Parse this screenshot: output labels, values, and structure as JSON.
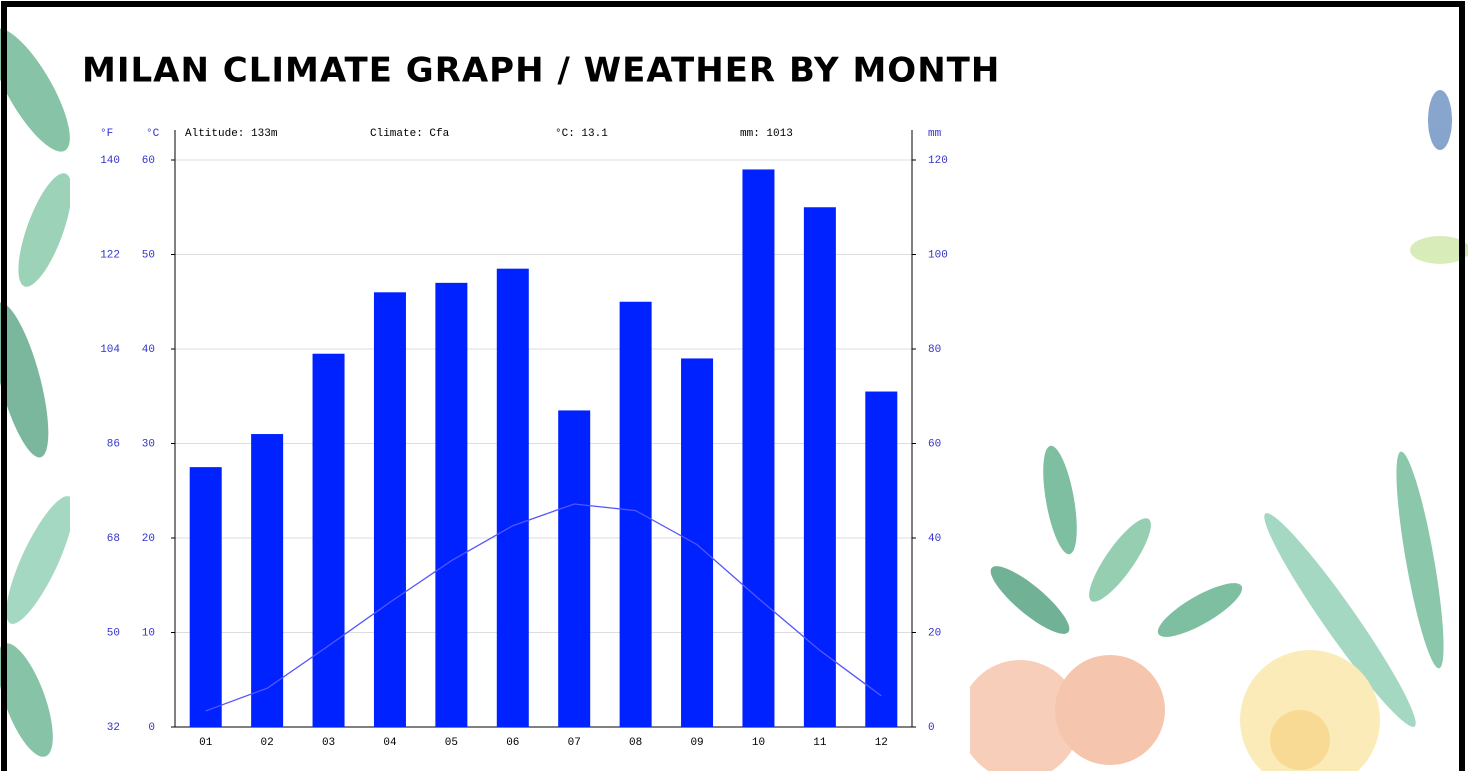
{
  "chart_data": {
    "type": "bar_line",
    "title": "MILAN CLIMATE GRAPH / WEATHER BY MONTH",
    "annotations": [
      "Altitude: 133m",
      "Climate: Cfa",
      "°C: 13.1",
      "mm: 1013"
    ],
    "y_unit": "°C",
    "y2_unit": "mm",
    "f_unit": "°F",
    "categories": [
      "01",
      "02",
      "03",
      "04",
      "05",
      "06",
      "07",
      "08",
      "09",
      "10",
      "11",
      "12"
    ],
    "series": [
      {
        "type": "bar",
        "axis": "y2",
        "color": "#0022ff",
        "values": [
          55,
          62,
          79,
          92,
          94,
          97,
          67,
          90,
          78,
          118,
          110,
          71
        ]
      },
      {
        "type": "line",
        "color": "#5555ff",
        "values": [
          1.7,
          4.1,
          8.6,
          13.2,
          17.6,
          21.3,
          23.6,
          22.9,
          19.3,
          13.6,
          8.1,
          3.3
        ]
      }
    ],
    "ylim": [
      0,
      60
    ],
    "yticks": [
      0,
      10,
      20,
      30,
      40,
      50,
      60
    ],
    "y2lim": [
      0,
      120
    ],
    "y2ticks": [
      0,
      20,
      40,
      60,
      80,
      100,
      120
    ],
    "fticks": [
      32,
      50,
      68,
      86,
      104,
      122,
      140
    ],
    "grid": true
  }
}
